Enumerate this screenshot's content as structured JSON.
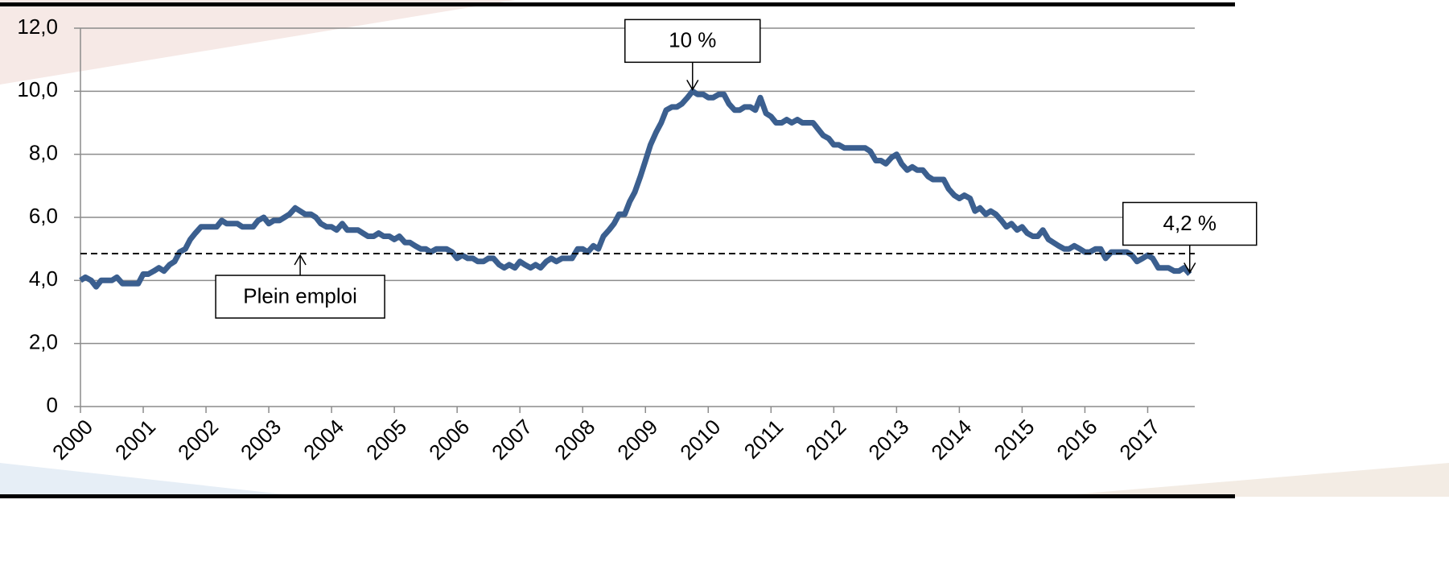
{
  "chart_data": {
    "type": "line",
    "x": [
      2000,
      2000.08,
      2000.17,
      2000.25,
      2000.33,
      2000.42,
      2000.5,
      2000.58,
      2000.67,
      2000.75,
      2000.83,
      2000.92,
      2001,
      2001.08,
      2001.17,
      2001.25,
      2001.33,
      2001.42,
      2001.5,
      2001.58,
      2001.67,
      2001.75,
      2001.83,
      2001.92,
      2002,
      2002.08,
      2002.17,
      2002.25,
      2002.33,
      2002.42,
      2002.5,
      2002.58,
      2002.67,
      2002.75,
      2002.83,
      2002.92,
      2003,
      2003.08,
      2003.17,
      2003.25,
      2003.33,
      2003.42,
      2003.5,
      2003.58,
      2003.67,
      2003.75,
      2003.83,
      2003.92,
      2004,
      2004.08,
      2004.17,
      2004.25,
      2004.33,
      2004.42,
      2004.5,
      2004.58,
      2004.67,
      2004.75,
      2004.83,
      2004.92,
      2005,
      2005.08,
      2005.17,
      2005.25,
      2005.33,
      2005.42,
      2005.5,
      2005.58,
      2005.67,
      2005.75,
      2005.83,
      2005.92,
      2006,
      2006.08,
      2006.17,
      2006.25,
      2006.33,
      2006.42,
      2006.5,
      2006.58,
      2006.67,
      2006.75,
      2006.83,
      2006.92,
      2007,
      2007.08,
      2007.17,
      2007.25,
      2007.33,
      2007.42,
      2007.5,
      2007.58,
      2007.67,
      2007.75,
      2007.83,
      2007.92,
      2008,
      2008.08,
      2008.17,
      2008.25,
      2008.33,
      2008.42,
      2008.5,
      2008.58,
      2008.67,
      2008.75,
      2008.83,
      2008.92,
      2009,
      2009.08,
      2009.17,
      2009.25,
      2009.33,
      2009.42,
      2009.5,
      2009.58,
      2009.67,
      2009.75,
      2009.83,
      2009.92,
      2010,
      2010.08,
      2010.17,
      2010.25,
      2010.33,
      2010.42,
      2010.5,
      2010.58,
      2010.67,
      2010.75,
      2010.83,
      2010.92,
      2011,
      2011.08,
      2011.17,
      2011.25,
      2011.33,
      2011.42,
      2011.5,
      2011.58,
      2011.67,
      2011.75,
      2011.83,
      2011.92,
      2012,
      2012.08,
      2012.17,
      2012.25,
      2012.33,
      2012.42,
      2012.5,
      2012.58,
      2012.67,
      2012.75,
      2012.83,
      2012.92,
      2013,
      2013.08,
      2013.17,
      2013.25,
      2013.33,
      2013.42,
      2013.5,
      2013.58,
      2013.67,
      2013.75,
      2013.83,
      2013.92,
      2014,
      2014.08,
      2014.17,
      2014.25,
      2014.33,
      2014.42,
      2014.5,
      2014.58,
      2014.67,
      2014.75,
      2014.83,
      2014.92,
      2015,
      2015.08,
      2015.17,
      2015.25,
      2015.33,
      2015.42,
      2015.5,
      2015.58,
      2015.67,
      2015.75,
      2015.83,
      2015.92,
      2016,
      2016.08,
      2016.17,
      2016.25,
      2016.33,
      2016.42,
      2016.5,
      2016.58,
      2016.67,
      2016.75,
      2016.83,
      2016.92,
      2017,
      2017.08,
      2017.17,
      2017.25,
      2017.33,
      2017.42,
      2017.5,
      2017.58,
      2017.67
    ],
    "values": [
      4.0,
      4.1,
      4.0,
      3.8,
      4.0,
      4.0,
      4.0,
      4.1,
      3.9,
      3.9,
      3.9,
      3.9,
      4.2,
      4.2,
      4.3,
      4.4,
      4.3,
      4.5,
      4.6,
      4.9,
      5.0,
      5.3,
      5.5,
      5.7,
      5.7,
      5.7,
      5.7,
      5.9,
      5.8,
      5.8,
      5.8,
      5.7,
      5.7,
      5.7,
      5.9,
      6.0,
      5.8,
      5.9,
      5.9,
      6.0,
      6.1,
      6.3,
      6.2,
      6.1,
      6.1,
      6.0,
      5.8,
      5.7,
      5.7,
      5.6,
      5.8,
      5.6,
      5.6,
      5.6,
      5.5,
      5.4,
      5.4,
      5.5,
      5.4,
      5.4,
      5.3,
      5.4,
      5.2,
      5.2,
      5.1,
      5.0,
      5.0,
      4.9,
      5.0,
      5.0,
      5.0,
      4.9,
      4.7,
      4.8,
      4.7,
      4.7,
      4.6,
      4.6,
      4.7,
      4.7,
      4.5,
      4.4,
      4.5,
      4.4,
      4.6,
      4.5,
      4.4,
      4.5,
      4.4,
      4.6,
      4.7,
      4.6,
      4.7,
      4.7,
      4.7,
      5.0,
      5.0,
      4.9,
      5.1,
      5.0,
      5.4,
      5.6,
      5.8,
      6.1,
      6.1,
      6.5,
      6.8,
      7.3,
      7.8,
      8.3,
      8.7,
      9.0,
      9.4,
      9.5,
      9.5,
      9.6,
      9.8,
      10.0,
      9.9,
      9.9,
      9.8,
      9.8,
      9.9,
      9.9,
      9.6,
      9.4,
      9.4,
      9.5,
      9.5,
      9.4,
      9.8,
      9.3,
      9.2,
      9.0,
      9.0,
      9.1,
      9.0,
      9.1,
      9.0,
      9.0,
      9.0,
      8.8,
      8.6,
      8.5,
      8.3,
      8.3,
      8.2,
      8.2,
      8.2,
      8.2,
      8.2,
      8.1,
      7.8,
      7.8,
      7.7,
      7.9,
      8.0,
      7.7,
      7.5,
      7.6,
      7.5,
      7.5,
      7.3,
      7.2,
      7.2,
      7.2,
      6.9,
      6.7,
      6.6,
      6.7,
      6.6,
      6.2,
      6.3,
      6.1,
      6.2,
      6.1,
      5.9,
      5.7,
      5.8,
      5.6,
      5.7,
      5.5,
      5.4,
      5.4,
      5.6,
      5.3,
      5.2,
      5.1,
      5.0,
      5.0,
      5.1,
      5.0,
      4.9,
      4.9,
      5.0,
      5.0,
      4.7,
      4.9,
      4.9,
      4.9,
      4.9,
      4.8,
      4.6,
      4.7,
      4.8,
      4.7,
      4.4,
      4.4,
      4.4,
      4.3,
      4.3,
      4.4,
      4.2
    ],
    "color": "#3b5f8f",
    "xlim": [
      2000,
      2017.75
    ],
    "xticks": [
      2000,
      2001,
      2002,
      2003,
      2004,
      2005,
      2006,
      2007,
      2008,
      2009,
      2010,
      2011,
      2012,
      2013,
      2014,
      2015,
      2016,
      2017
    ],
    "ylim": [
      0,
      12
    ],
    "yticks": [
      0,
      {
        "value": 2,
        "label": "2,0"
      },
      {
        "value": 4,
        "label": "4,0"
      },
      {
        "value": 6,
        "label": "6,0"
      },
      {
        "value": 8,
        "label": "8,0"
      },
      {
        "value": 10,
        "label": "10,0"
      },
      {
        "value": 12,
        "label": "12,0"
      }
    ],
    "grid": true,
    "reference_line": {
      "value": 4.85,
      "label": "Plein emploi",
      "x": 2003.5
    },
    "annotations": [
      {
        "text": "10 %",
        "x": 2009.75,
        "y": 10
      },
      {
        "text": "4,2 %",
        "x": 2017.67,
        "y": 4.2
      }
    ]
  }
}
